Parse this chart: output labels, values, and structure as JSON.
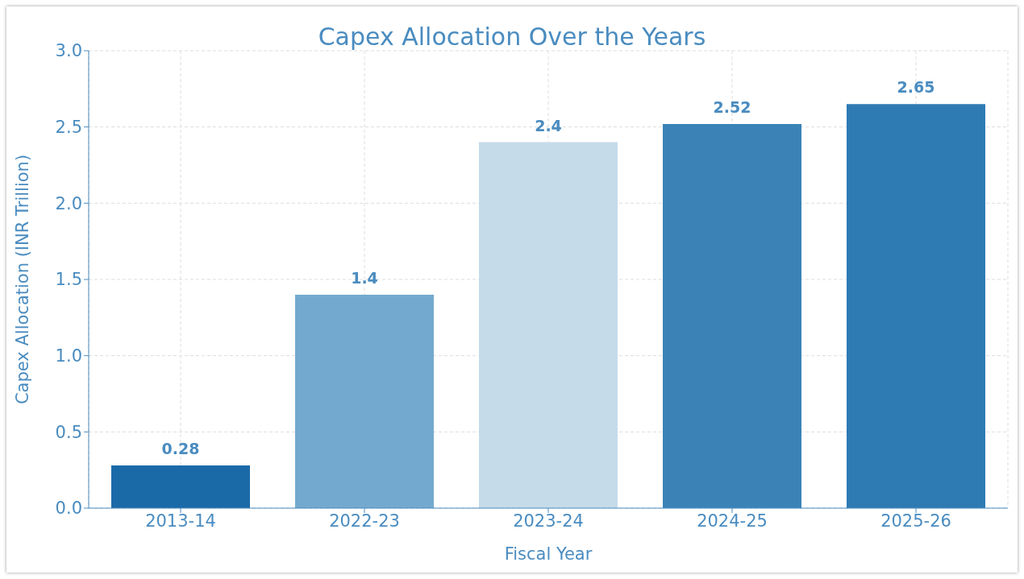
{
  "chart_data": {
    "type": "bar",
    "title": "Capex Allocation Over the Years",
    "xlabel": "Fiscal Year",
    "ylabel": "Capex Allocation (INR Trillion)",
    "categories": [
      "2013-14",
      "2022-23",
      "2023-24",
      "2024-25",
      "2025-26"
    ],
    "values": [
      0.28,
      1.4,
      2.4,
      2.52,
      2.65
    ],
    "colors": [
      "#1b6aa8",
      "#74a9cf",
      "#c6dbea",
      "#3b83b6",
      "#2e7bb4"
    ],
    "ylim": [
      0,
      3.0
    ],
    "yticks": [
      {
        "value": 0,
        "label": "0.0"
      },
      {
        "value": 0.5,
        "label": "0.5"
      },
      {
        "value": 1,
        "label": "1.0"
      },
      {
        "value": 1.5,
        "label": "1.5"
      },
      {
        "value": 2,
        "label": "2.0"
      },
      {
        "value": 2.5,
        "label": "2.5"
      },
      {
        "value": 3,
        "label": "3.0"
      }
    ],
    "grid": true,
    "data_labels": true
  }
}
